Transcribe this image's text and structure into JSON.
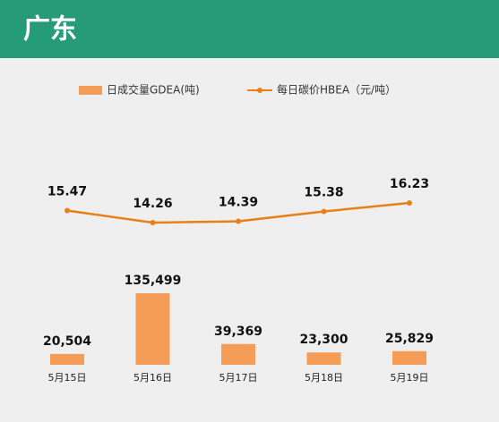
{
  "chart_data": {
    "type": "bar",
    "title": "广东",
    "categories": [
      "5月15日",
      "5月16日",
      "5月17日",
      "5月18日",
      "5月19日"
    ],
    "series": [
      {
        "name": "日成交量GDEA(吨)",
        "type": "bar",
        "color": "#f59d56",
        "values": [
          20504,
          135499,
          39369,
          23300,
          25829
        ],
        "value_labels": [
          "20,504",
          "135,499",
          "39,369",
          "23,300",
          "25,829"
        ]
      },
      {
        "name": "每日碳价HBEA（元/吨）",
        "type": "line",
        "axis": "y2",
        "color": "#e8801a",
        "values": [
          15.47,
          14.26,
          14.39,
          15.38,
          16.23
        ]
      }
    ],
    "legend": "top"
  }
}
